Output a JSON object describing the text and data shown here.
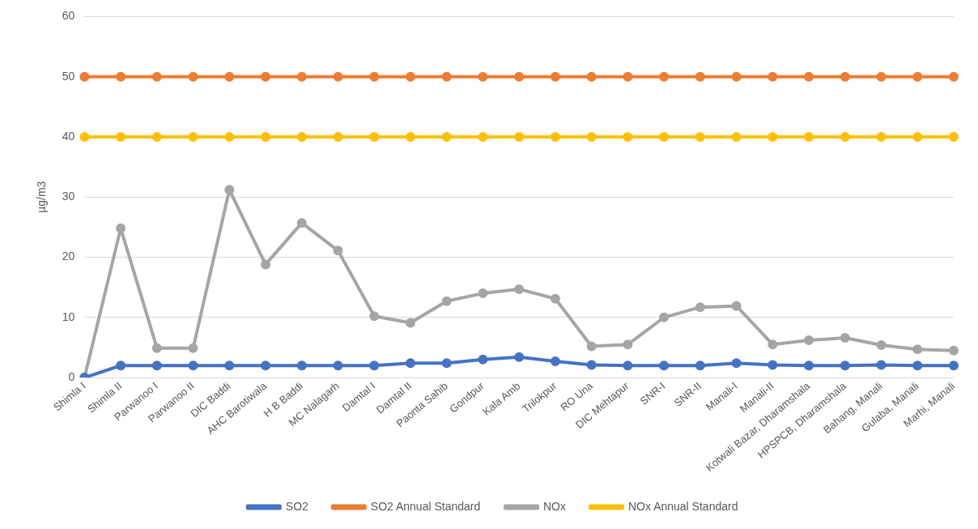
{
  "chart_data": {
    "type": "line",
    "ylabel": "µg/m3",
    "categories": [
      "Shimla I",
      "Shimla II",
      "Parwanoo I",
      "Parwanoo II",
      "DIC Baddi",
      "AHC Barotiwala",
      "H B Baddi",
      "MC Nalagarh",
      "Damtal I",
      "Damtal II",
      "Paonta Sahib",
      "Gondpur",
      "Kala Amb",
      "Trilokpur",
      "RO Una",
      "DIC Mehtapur",
      "SNR-I",
      "SNR-II",
      "Manali-I",
      "Manali-II",
      "Kotwali Bazar, Dharamshala",
      "HPSPCB, Dharamshala",
      "Bahang, Manali",
      "Gulaba, Manali",
      "Marhi, Manali"
    ],
    "series": [
      {
        "name": "SO2",
        "color": "#4472c4",
        "values": [
          0,
          2,
          2,
          2,
          2,
          2,
          2,
          2,
          2,
          2.4,
          2.4,
          3,
          3.4,
          2.7,
          2.1,
          2,
          2,
          2,
          2.4,
          2.1,
          2,
          2,
          2.1,
          2,
          2
        ]
      },
      {
        "name": "SO2 Annual Standard",
        "color": "#ed7d31",
        "values": [
          50,
          50,
          50,
          50,
          50,
          50,
          50,
          50,
          50,
          50,
          50,
          50,
          50,
          50,
          50,
          50,
          50,
          50,
          50,
          50,
          50,
          50,
          50,
          50,
          50
        ]
      },
      {
        "name": "NOx",
        "color": "#a5a5a5",
        "values": [
          0,
          24.8,
          4.9,
          4.9,
          31.2,
          18.8,
          25.7,
          21.1,
          10.2,
          9.1,
          12.7,
          14,
          14.7,
          13.1,
          5.2,
          5.5,
          10,
          11.7,
          11.9,
          5.5,
          6.2,
          6.6,
          5.4,
          4.7,
          4.5
        ]
      },
      {
        "name": "NOx Annual Standard",
        "color": "#ffc000",
        "values": [
          40,
          40,
          40,
          40,
          40,
          40,
          40,
          40,
          40,
          40,
          40,
          40,
          40,
          40,
          40,
          40,
          40,
          40,
          40,
          40,
          40,
          40,
          40,
          40,
          40
        ]
      }
    ],
    "ylim": [
      0,
      60
    ],
    "yticks": [
      0,
      10,
      20,
      30,
      40,
      50,
      60
    ],
    "grid": "y",
    "legend": "bottom",
    "marker": "circle",
    "line_style": "solid"
  }
}
